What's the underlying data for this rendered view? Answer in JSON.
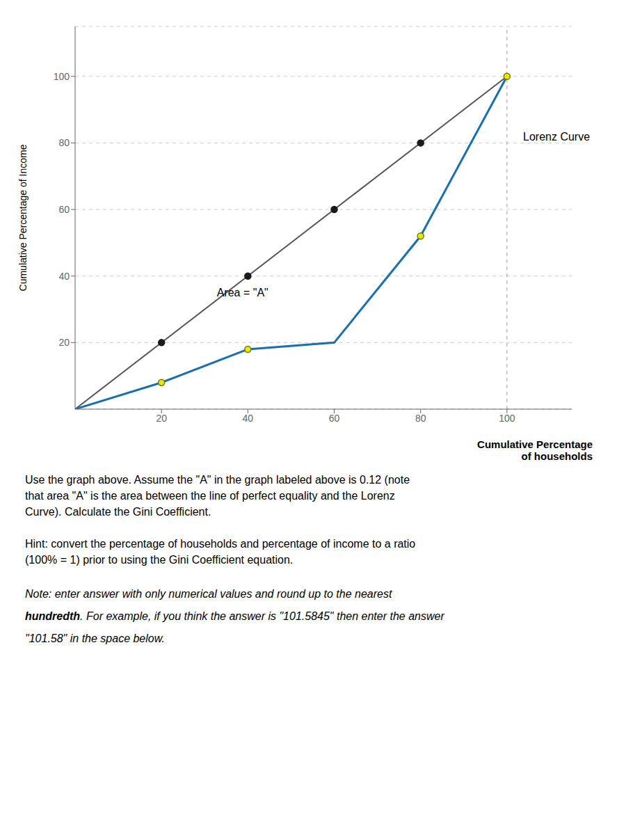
{
  "chart_data": {
    "type": "line",
    "title": "Lorenz Curve",
    "xlabel": "Cumulative Percentage\nof households",
    "ylabel": "Cumulative Percentage of Income",
    "xlim": [
      0,
      115
    ],
    "ylim": [
      0,
      115
    ],
    "xticks": [
      20,
      40,
      60,
      80,
      100
    ],
    "yticks": [
      20,
      40,
      60,
      80,
      100
    ],
    "grid": true,
    "vlines": [
      100
    ],
    "series": [
      {
        "type": "line",
        "color": "#555555",
        "line_style": "solid",
        "x": [
          0,
          100
        ],
        "values": [
          0,
          100
        ]
      },
      {
        "type": "line",
        "color": "#1a6faf",
        "line_style": "solid",
        "x": [
          0,
          20,
          40,
          60,
          80,
          100
        ],
        "values": [
          0,
          8,
          18,
          20,
          52,
          100
        ]
      },
      {
        "type": "scatter",
        "color": "#1a1a1a",
        "marker": "circle",
        "x": [
          20,
          40,
          60,
          80
        ],
        "values": [
          20,
          40,
          60,
          80
        ]
      },
      {
        "type": "scatter",
        "color": "#e8e800",
        "marker": "circle",
        "x": [
          20,
          40,
          80,
          100
        ],
        "values": [
          8,
          18,
          52,
          100
        ]
      }
    ],
    "annotations": [
      {
        "text": "Area = \"A\"",
        "x": 32,
        "y": 35
      }
    ],
    "texts": [
      "Use the graph above. Assume the \"A\" in the graph labeled above is 0.12 (note\nthat area \"A\" is the area between the line of perfect equality and the Lorenz\nCurve). Calculate the Gini Coefficient.",
      "Hint: convert the percentage of households and percentage of income to a ratio\n(100% = 1) prior to using the Gini Coefficient equation."
    ],
    "note": [
      "Note: enter answer with only numerical values and round up to the nearest",
      "hundredth. For example, if you think the answer is \"101.5845\" then enter the answer",
      "\"101.58\" in the space below."
    ],
    "note_emphasis": "hundredth"
  }
}
